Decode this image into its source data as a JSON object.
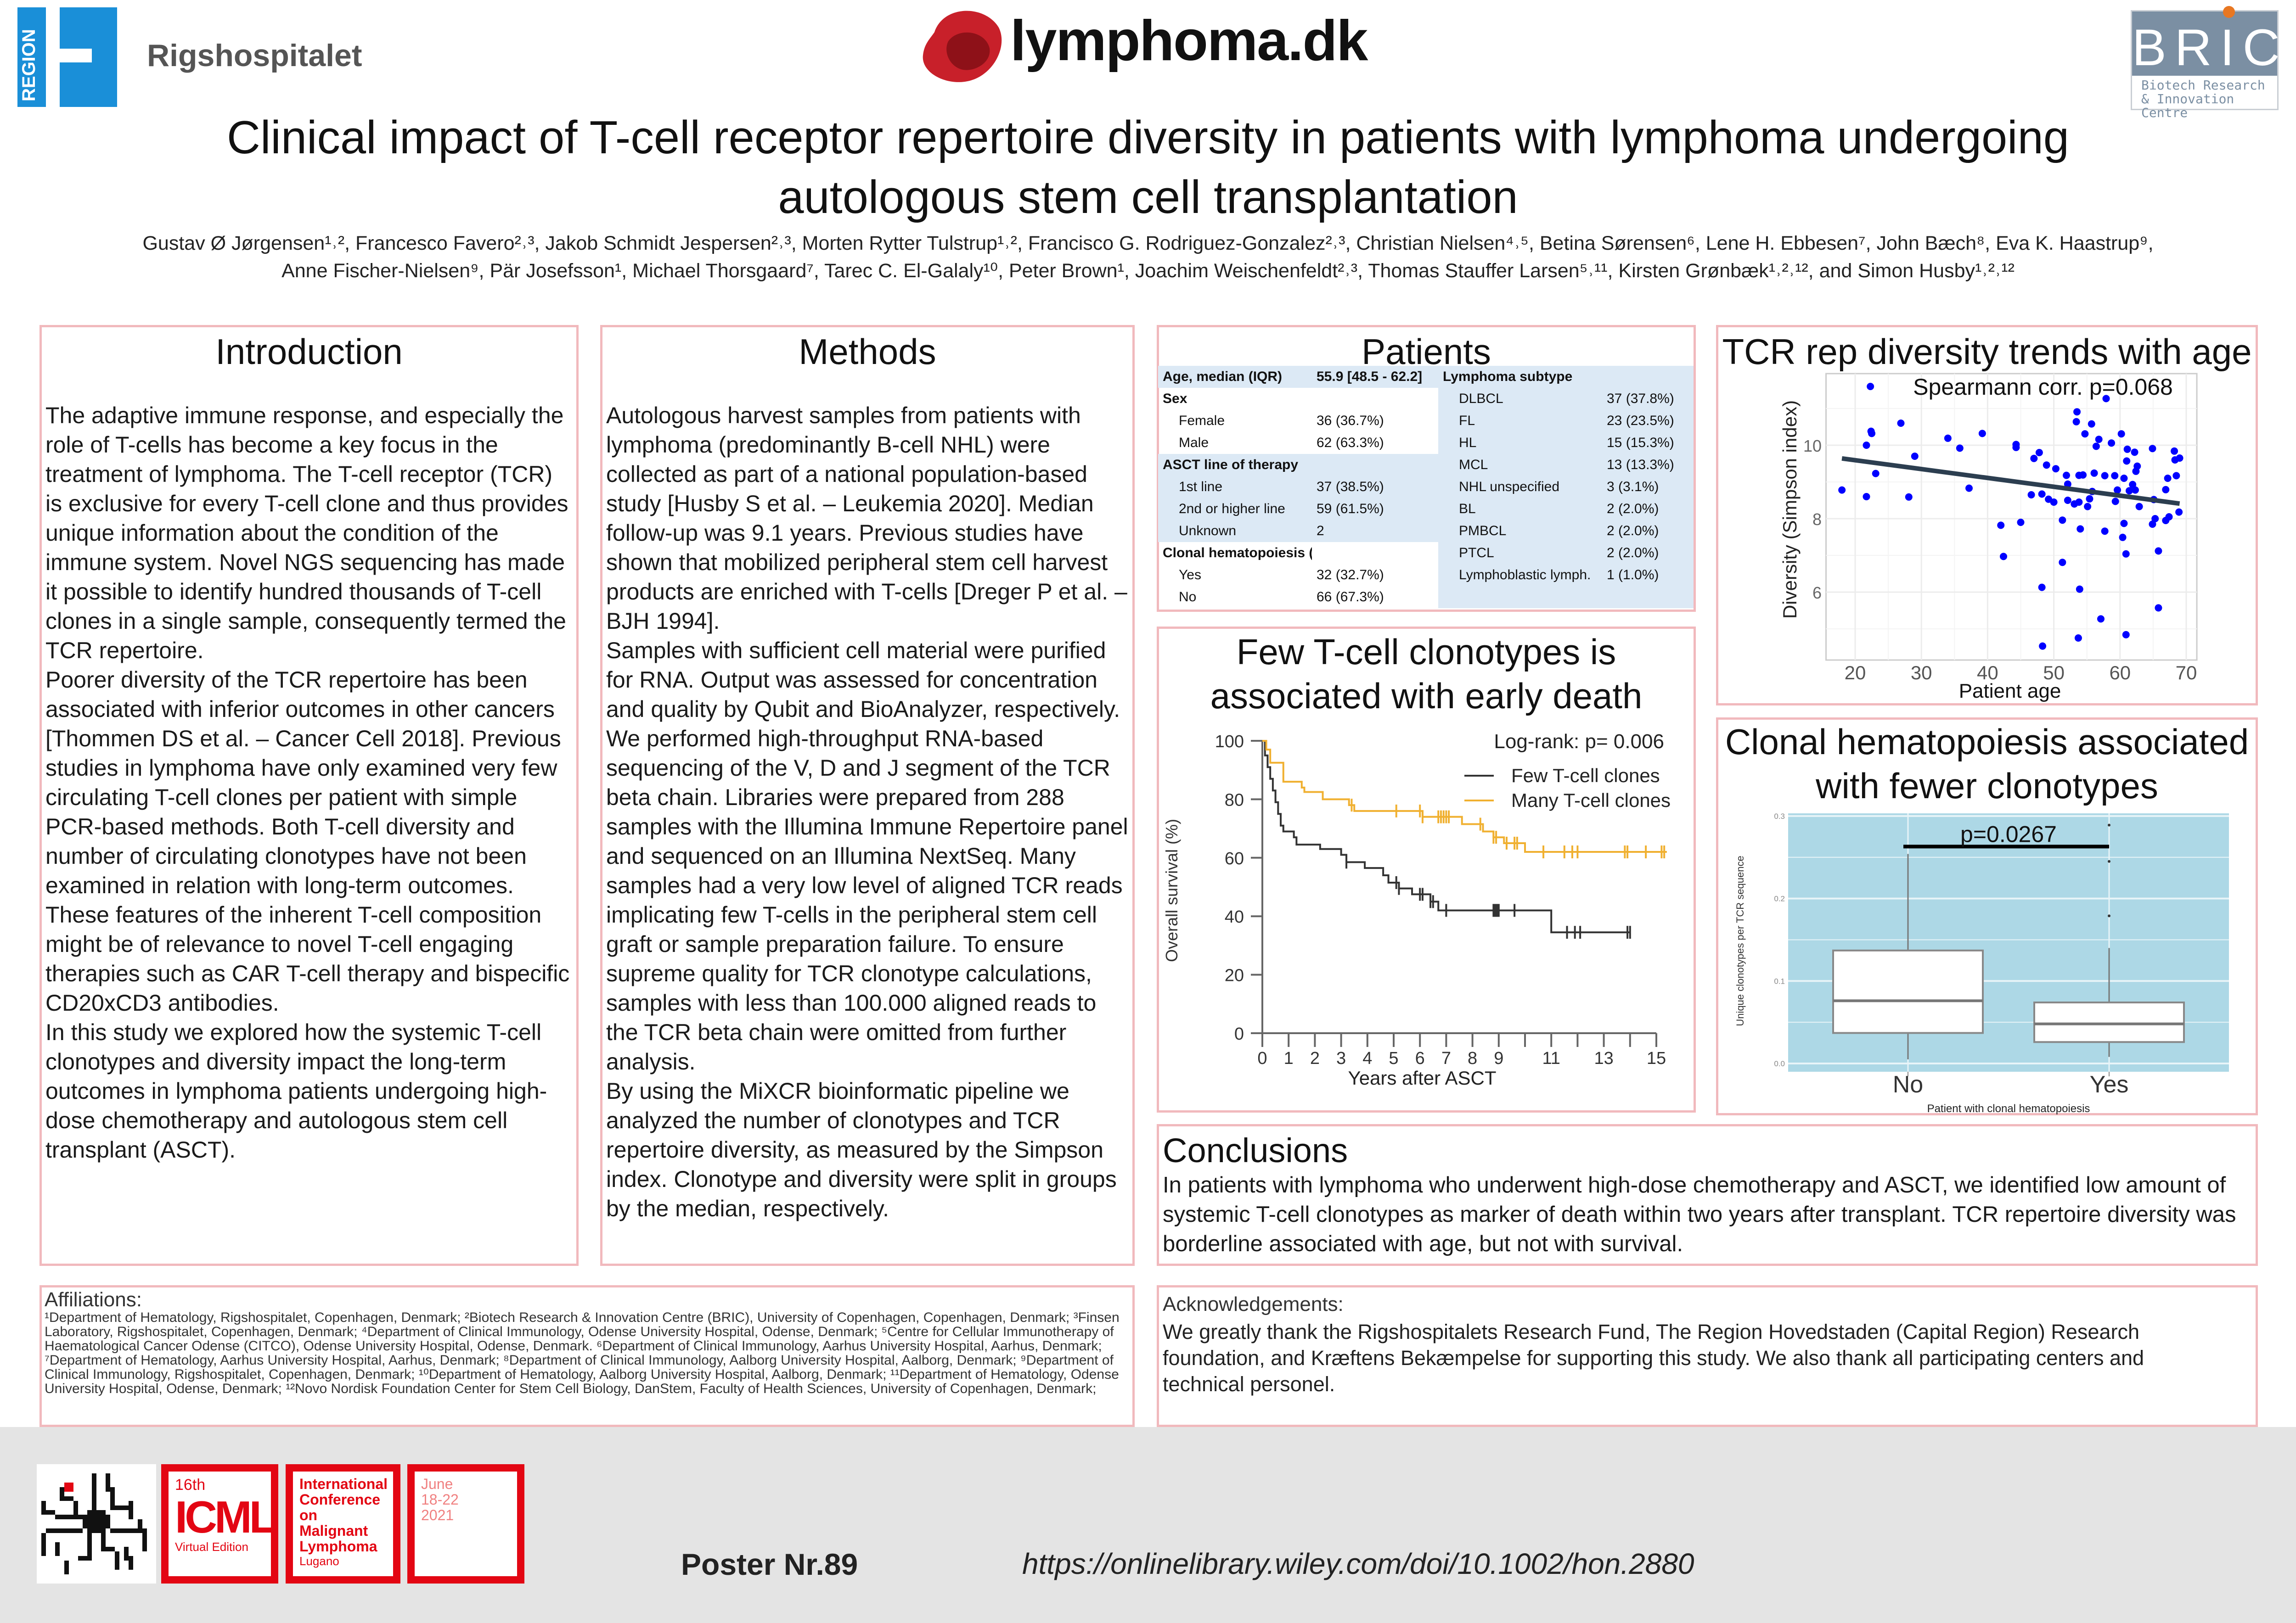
{
  "header": {
    "region_logo_text": "REGION",
    "hospital_name": "Rigshospitalet",
    "lymphoma_logo_text": "lymphoma.dk",
    "bric_logo_text": "BRIC",
    "bric_logo_subtitle": "Biotech Research & Innovation Centre",
    "title_line1": "Clinical impact of T-cell receptor repertoire diversity in patients with lymphoma undergoing",
    "title_line2": "autologous stem cell transplantation",
    "authors_line1": "Gustav Ø Jørgensen¹˒², Francesco Favero²˒³, Jakob Schmidt Jespersen²˒³, Morten Rytter Tulstrup¹˒², Francisco G. Rodriguez-Gonzalez²˒³, Christian Nielsen⁴˒⁵, Betina Sørensen⁶, Lene H. Ebbesen⁷, John Bæch⁸, Eva K. Haastrup⁹,",
    "authors_line2": "Anne Fischer-Nielsen⁹, Pär Josefsson¹, Michael Thorsgaard⁷, Tarec C. El-Galaly¹⁰, Peter Brown¹, Joachim Weischenfeldt²˒³, Thomas Stauffer Larsen⁵˒¹¹, Kirsten Grønbæk¹˒²˒¹², and Simon Husby¹˒²˒¹²"
  },
  "introduction": {
    "heading": "Introduction",
    "paragraphs": [
      "The adaptive immune response, and especially the role of T-cells has become a key focus in the treatment of lymphoma. The T-cell receptor (TCR) is exclusive for every T-cell clone and thus provides unique information about the condition of the immune system. Novel NGS sequencing has made it possible to identify hundred thousands of T-cell clones in a single sample, consequently termed the TCR repertoire.",
      "Poorer diversity of the TCR repertoire has been associated with inferior outcomes in other cancers [Thommen DS et al. – Cancer Cell 2018]. Previous studies in lymphoma have only examined very few circulating T-cell clones per patient with simple PCR-based methods. Both T-cell diversity and number of circulating clonotypes have not been examined in relation with long-term outcomes. These features of the inherent T-cell composition might be of relevance to novel T-cell engaging therapies such as CAR T-cell therapy and bispecific CD20xCD3 antibodies.",
      "In this study we explored how the systemic T-cell clonotypes and diversity impact the long-term outcomes in lymphoma patients undergoing high-dose chemotherapy and autologous stem cell transplant (ASCT)."
    ]
  },
  "methods": {
    "heading": "Methods",
    "paragraphs": [
      "Autologous harvest samples from patients with lymphoma (predominantly B-cell NHL) were collected as part of a national population-based study [Husby S et al. – Leukemia 2020]. Median follow-up was 9.1 years. Previous studies have shown that mobilized peripheral stem cell harvest products are enriched with T-cells [Dreger P et al. – BJH 1994].",
      "Samples with sufficient cell material were purified for RNA. Output was assessed for concentration and quality by Qubit and BioAnalyzer, respectively.",
      "We performed high-throughput RNA-based sequencing of the V, D and J segment of the TCR beta chain. Libraries were prepared from 288 samples with the Illumina Immune Repertoire panel and sequenced on an Illumina NextSeq. Many samples had a very low level of aligned TCR reads implicating few T-cells in the peripheral stem cell graft or sample preparation failure. To ensure supreme quality for TCR clonotype calculations, samples with less than 100.000 aligned reads to the TCR beta chain were omitted from further analysis.",
      "By using the MiXCR bioinformatic pipeline we analyzed the number of clonotypes and TCR repertoire diversity, as measured by the Simpson index. Clonotype and diversity were split in groups by the median, respectively."
    ]
  },
  "patients": {
    "heading": "Patients",
    "left_rows": [
      {
        "label": "Age, median (IQR)",
        "value": "55.9 [48.5 - 62.2]",
        "bold": true,
        "indent": false,
        "blue": true
      },
      {
        "label": "Sex",
        "value": "",
        "bold": true,
        "indent": false,
        "blue": false
      },
      {
        "label": "Female",
        "value": "36 (36.7%)",
        "bold": false,
        "indent": true,
        "blue": false
      },
      {
        "label": "Male",
        "value": "62 (63.3%)",
        "bold": false,
        "indent": true,
        "blue": false
      },
      {
        "label": "ASCT line of therapy",
        "value": "",
        "bold": true,
        "indent": false,
        "blue": true
      },
      {
        "label": "1st line",
        "value": "37 (38.5%)",
        "bold": false,
        "indent": true,
        "blue": true
      },
      {
        "label": "2nd or higher line",
        "value": "59 (61.5%)",
        "bold": false,
        "indent": true,
        "blue": true
      },
      {
        "label": "Unknown",
        "value": "2",
        "bold": false,
        "indent": true,
        "blue": true
      },
      {
        "label": "Clonal hematopoiesis (CHIP)",
        "value": "",
        "bold": true,
        "indent": false,
        "blue": false
      },
      {
        "label": "Yes",
        "value": "32 (32.7%)",
        "bold": false,
        "indent": true,
        "blue": false
      },
      {
        "label": "No",
        "value": "66 (67.3%)",
        "bold": false,
        "indent": true,
        "blue": false
      }
    ],
    "right_rows": [
      {
        "label": "Lymphoma subtype",
        "value": "",
        "bold": true
      },
      {
        "label": "DLBCL",
        "value": "37 (37.8%)",
        "bold": false
      },
      {
        "label": "FL",
        "value": "23 (23.5%)",
        "bold": false
      },
      {
        "label": "HL",
        "value": "15 (15.3%)",
        "bold": false
      },
      {
        "label": "MCL",
        "value": "13 (13.3%)",
        "bold": false
      },
      {
        "label": "NHL unspecified",
        "value": "3 (3.1%)",
        "bold": false
      },
      {
        "label": "BL",
        "value": "2 (2.0%)",
        "bold": false
      },
      {
        "label": "PMBCL",
        "value": "2 (2.0%)",
        "bold": false
      },
      {
        "label": "PTCL",
        "value": "2 (2.0%)",
        "bold": false
      },
      {
        "label": "Lymphoblastic lymph.",
        "value": "1 (1.0%)",
        "bold": false
      },
      {
        "label": "",
        "value": "",
        "bold": false
      }
    ]
  },
  "km_panel": {
    "heading_line1": "Few T-cell clonotypes is",
    "heading_line2": "associated with early death"
  },
  "scatter_panel": {
    "heading": "TCR rep diversity trends with age"
  },
  "box_panel": {
    "heading_line1": "Clonal hematopoiesis associated",
    "heading_line2": "with fewer clonotypes"
  },
  "conclusions": {
    "heading": "Conclusions",
    "text": "In patients with lymphoma who underwent high-dose chemotherapy and ASCT, we identified low amount of systemic T-cell clonotypes as marker of death within two years after transplant. TCR repertoire diversity was borderline associated with age, but not with survival."
  },
  "affiliations": {
    "heading": "Affiliations:",
    "text": "¹Department of Hematology, Rigshospitalet, Copenhagen, Denmark; ²Biotech Research & Innovation Centre (BRIC), University of Copenhagen, Copenhagen, Denmark; ³Finsen Laboratory, Rigshospitalet, Copenhagen, Denmark; ⁴Department of Clinical Immunology, Odense University Hospital, Odense, Denmark; ⁵Centre for Cellular Immunotherapy of Haematological Cancer Odense (CITCO), Odense University Hospital, Odense, Denmark. ⁶Department of Clinical Immunology, Aarhus University Hospital, Aarhus, Denmark; ⁷Department of Hematology, Aarhus University Hospital, Aarhus, Denmark; ⁸Department of Clinical Immunology, Aalborg University Hospital, Aalborg, Denmark; ⁹Department of Clinical Immunology, Rigshospitalet, Copenhagen, Denmark; ¹⁰Department of Hematology, Aalborg University Hospital, Aalborg, Denmark; ¹¹Department of Hematology, Odense University Hospital, Odense, Denmark; ¹²Novo Nordisk Foundation Center for Stem Cell Biology, DanStem, Faculty of Health Sciences, University of Copenhagen, Denmark;"
  },
  "acknowledgements": {
    "heading": "Acknowledgements:",
    "text": "We greatly thank the Rigshospitalets Research Fund, The Region Hovedstaden (Capital Region) Research foundation, and Kræftens Bekæmpelse for supporting this study. We also thank all participating centers and technical personel."
  },
  "footer": {
    "icml_edition": "16th",
    "icml_name": "ICML",
    "icml_virtual": "Virtual Edition",
    "conference_name": "International Conference on Malignant Lymphoma",
    "conference_city": "Lugano",
    "date_month": "June",
    "date_days": "18-22",
    "date_year": "2021",
    "poster_number": "Poster Nr.89",
    "url": "https://onlinelibrary.wiley.com/doi/10.1002/hon.2880"
  },
  "colors": {
    "panel_border": "#f1b9bd",
    "few_clones": "#333333",
    "many_clones": "#f0b030",
    "scatter_points": "#0000ff",
    "box_background": "#add8e6",
    "icml_red": "#e30613",
    "region_blue": "#1a8fd8"
  },
  "chart_data": [
    {
      "type": "line",
      "subtype": "kaplan-meier",
      "title": "Few T-cell clonotypes is associated with early death",
      "xlabel": "Years after ASCT",
      "ylabel": "Overall survival (%)",
      "xlim": [
        0,
        15
      ],
      "ylim": [
        0,
        100
      ],
      "xticks": [
        0,
        1,
        2,
        3,
        4,
        5,
        6,
        7,
        8,
        9,
        10,
        11,
        12,
        13,
        14,
        15
      ],
      "xtick_labels": [
        "0",
        "1",
        "2",
        "3",
        "4",
        "5",
        "6",
        "7",
        "8",
        "9",
        "",
        "11",
        "",
        "13",
        "",
        "15"
      ],
      "yticks": [
        0,
        20,
        40,
        60,
        80,
        100
      ],
      "annotation": "Log-rank: p= 0.006",
      "legend_position": "top-right",
      "series": [
        {
          "name": "Few T-cell clones",
          "color": "#333333",
          "steps": [
            [
              0,
              100
            ],
            [
              0.1,
              95
            ],
            [
              0.2,
              91
            ],
            [
              0.3,
              87
            ],
            [
              0.4,
              83
            ],
            [
              0.5,
              79
            ],
            [
              0.6,
              75
            ],
            [
              0.7,
              71
            ],
            [
              0.8,
              69
            ],
            [
              1.2,
              67
            ],
            [
              1.3,
              64.5
            ],
            [
              2.2,
              63
            ],
            [
              3.0,
              61
            ],
            [
              3.2,
              58.5
            ],
            [
              3.9,
              56.5
            ],
            [
              4.6,
              54
            ],
            [
              4.8,
              51.5
            ],
            [
              5.2,
              49.5
            ],
            [
              5.7,
              47.5
            ],
            [
              6.4,
              45
            ],
            [
              6.7,
              42
            ],
            [
              11.0,
              34.5
            ]
          ],
          "end": 14.0,
          "censored": [
            3.2,
            5.1,
            5.2,
            6.0,
            6.1,
            6.4,
            6.5,
            7.0,
            8.8,
            8.85,
            8.9,
            8.95,
            9.0,
            9.6,
            11.6,
            11.9,
            12.1,
            13.9,
            14.0
          ]
        },
        {
          "name": "Many T-cell clones",
          "color": "#f0b030",
          "steps": [
            [
              0,
              100
            ],
            [
              0.15,
              97
            ],
            [
              0.3,
              92.5
            ],
            [
              0.8,
              86
            ],
            [
              1.5,
              84
            ],
            [
              1.6,
              82.5
            ],
            [
              2.3,
              80
            ],
            [
              3.3,
              78
            ],
            [
              3.5,
              76
            ],
            [
              6.1,
              74
            ],
            [
              7.6,
              71.5
            ],
            [
              8.4,
              69
            ],
            [
              8.8,
              67
            ],
            [
              9.2,
              65
            ],
            [
              10.0,
              62
            ]
          ],
          "end": 15.4,
          "censored": [
            3.4,
            5.1,
            6.0,
            6.1,
            6.7,
            6.8,
            6.9,
            7.0,
            7.1,
            8.3,
            8.8,
            8.9,
            9.3,
            9.6,
            9.7,
            10.7,
            11.5,
            11.8,
            12.0,
            13.8,
            13.9,
            14.6,
            15.2,
            15.3
          ]
        }
      ]
    },
    {
      "type": "scatter",
      "title": "TCR rep diversity trends with age",
      "xlabel": "Patient age",
      "ylabel": "Diversity (Simpson index)",
      "xlim": [
        15.6,
        71.6
      ],
      "ylim": [
        4.15,
        11.95
      ],
      "xticks": [
        20,
        30,
        40,
        50,
        60,
        70
      ],
      "yticks": [
        6,
        8,
        10
      ],
      "annotation": "Spearmann corr. p=0.068",
      "trend_line": [
        [
          18,
          9.64
        ],
        [
          69,
          8.41
        ]
      ],
      "points": [
        [
          22.3,
          11.6
        ],
        [
          18,
          8.78
        ],
        [
          21.7,
          10.0
        ],
        [
          21.7,
          8.6
        ],
        [
          22.4,
          10.38
        ],
        [
          22.5,
          10.32
        ],
        [
          23.1,
          9.23
        ],
        [
          26.9,
          10.6
        ],
        [
          28.1,
          8.59
        ],
        [
          29,
          9.7
        ],
        [
          34,
          10.19
        ],
        [
          35.8,
          9.92
        ],
        [
          37.2,
          8.83
        ],
        [
          39.2,
          10.32
        ],
        [
          42,
          7.82
        ],
        [
          42.4,
          6.97
        ],
        [
          44.3,
          10.02
        ],
        [
          44.3,
          9.94
        ],
        [
          45,
          7.9
        ],
        [
          46.6,
          8.65
        ],
        [
          47,
          9.64
        ],
        [
          47.8,
          9.8
        ],
        [
          48.2,
          8.67
        ],
        [
          48.2,
          6.13
        ],
        [
          48.3,
          4.53
        ],
        [
          48.9,
          9.46
        ],
        [
          49.2,
          8.53
        ],
        [
          50,
          8.45
        ],
        [
          50.3,
          9.36
        ],
        [
          51.3,
          7.96
        ],
        [
          51.3,
          6.81
        ],
        [
          51.9,
          9.18
        ],
        [
          52.1,
          8.94
        ],
        [
          52.1,
          8.5
        ],
        [
          53.1,
          8.4
        ],
        [
          53.4,
          10.64
        ],
        [
          53.5,
          10.91
        ],
        [
          53.7,
          4.75
        ],
        [
          53.8,
          9.18
        ],
        [
          53.8,
          8.45
        ],
        [
          53.9,
          6.08
        ],
        [
          54,
          7.72
        ],
        [
          54.4,
          9.19
        ],
        [
          54.7,
          10.31
        ],
        [
          55.1,
          8.33
        ],
        [
          55.4,
          8.54
        ],
        [
          55.7,
          10.58
        ],
        [
          55.8,
          8.74
        ],
        [
          56.1,
          9.24
        ],
        [
          56.4,
          9.97
        ],
        [
          56.8,
          10.16
        ],
        [
          57.1,
          5.27
        ],
        [
          57.7,
          7.66
        ],
        [
          57.7,
          9.17
        ],
        [
          57.9,
          11.27
        ],
        [
          58.7,
          10.06
        ],
        [
          59.2,
          9.17
        ],
        [
          59.3,
          8.47
        ],
        [
          59.6,
          8.78
        ],
        [
          60.2,
          10.31
        ],
        [
          60.4,
          7.49
        ],
        [
          60.6,
          9.1
        ],
        [
          60.6,
          7.87
        ],
        [
          60.9,
          7.04
        ],
        [
          60.9,
          4.84
        ],
        [
          61,
          9.57
        ],
        [
          61.1,
          9.89
        ],
        [
          61.4,
          8.76
        ],
        [
          61.9,
          8.93
        ],
        [
          62.2,
          9.81
        ],
        [
          62.3,
          8.78
        ],
        [
          62.4,
          9.29
        ],
        [
          62.6,
          9.43
        ],
        [
          62.9,
          8.33
        ],
        [
          64.9,
          9.91
        ],
        [
          64.9,
          7.85
        ],
        [
          65.1,
          8.52
        ],
        [
          65.3,
          8.0
        ],
        [
          65.8,
          7.12
        ],
        [
          65.8,
          5.57
        ],
        [
          66.9,
          8.79
        ],
        [
          66.9,
          7.95
        ],
        [
          67.2,
          9.1
        ],
        [
          67.4,
          8.05
        ],
        [
          68.2,
          9.84
        ],
        [
          68.3,
          9.6
        ],
        [
          68.5,
          9.17
        ],
        [
          68.9,
          8.18
        ],
        [
          69,
          9.65
        ]
      ]
    },
    {
      "type": "box",
      "title": "Clonal hematopoiesis associated with fewer clonotypes",
      "xlabel": "Patient with clonal hematopoiesis",
      "ylabel": "Unique clonotypes per TCR sequence",
      "ylim": [
        -0.01,
        0.303
      ],
      "yticks": [
        0.0,
        0.1,
        0.2,
        0.3
      ],
      "ytick_labels": [
        "0.0",
        "0.1",
        "0.2",
        "0.3"
      ],
      "categories": [
        "No",
        "Yes"
      ],
      "boxes": [
        {
          "whisker_low": 0.005,
          "q1": 0.037,
          "median": 0.076,
          "q3": 0.137,
          "whisker_high": 0.254,
          "outliers": []
        },
        {
          "whisker_low": 0.008,
          "q1": 0.026,
          "median": 0.048,
          "q3": 0.074,
          "whisker_high": 0.14,
          "outliers": [
            0.179,
            0.245,
            0.289
          ]
        }
      ],
      "annotation": "p=0.0267",
      "bracket_value": 0.263
    }
  ]
}
